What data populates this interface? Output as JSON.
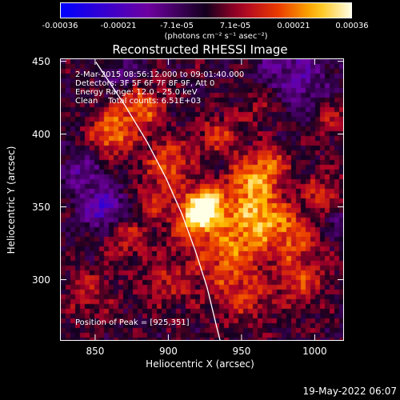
{
  "colorbar": {
    "ticks": [
      "-0.00036",
      "-0.00021",
      "-7.1e-05",
      "7.1e-05",
      "0.00021",
      "0.00036"
    ],
    "unit": "(photons cm⁻² s⁻¹ asec⁻²)"
  },
  "chart_data": {
    "type": "heatmap",
    "title": "Reconstructed RHESSI Image",
    "xlabel": "Heliocentric X (arcsec)",
    "ylabel": "Heliocentric Y (arcsec)",
    "xlim": [
      826,
      1020
    ],
    "ylim": [
      258,
      452
    ],
    "x_ticks": [
      850,
      900,
      950,
      1000
    ],
    "y_ticks": [
      300,
      350,
      400,
      450
    ],
    "colorbar_range": [
      -0.00036,
      0.00036
    ],
    "peak": [
      925,
      351
    ],
    "info_lines": [
      "2-Mar-2015 08:56:12.000 to 09:01:40.000",
      "Detectors: 3F 5F 6F 7F 8F 9F, Att 0",
      "Energy Range: 12.0 - 25.0 keV",
      "Clean    Total counts: 6.51E+03"
    ],
    "peak_label": "Position of Peak = [925,351]"
  },
  "footer": {
    "timestamp": "19-May-2022 06:07"
  }
}
